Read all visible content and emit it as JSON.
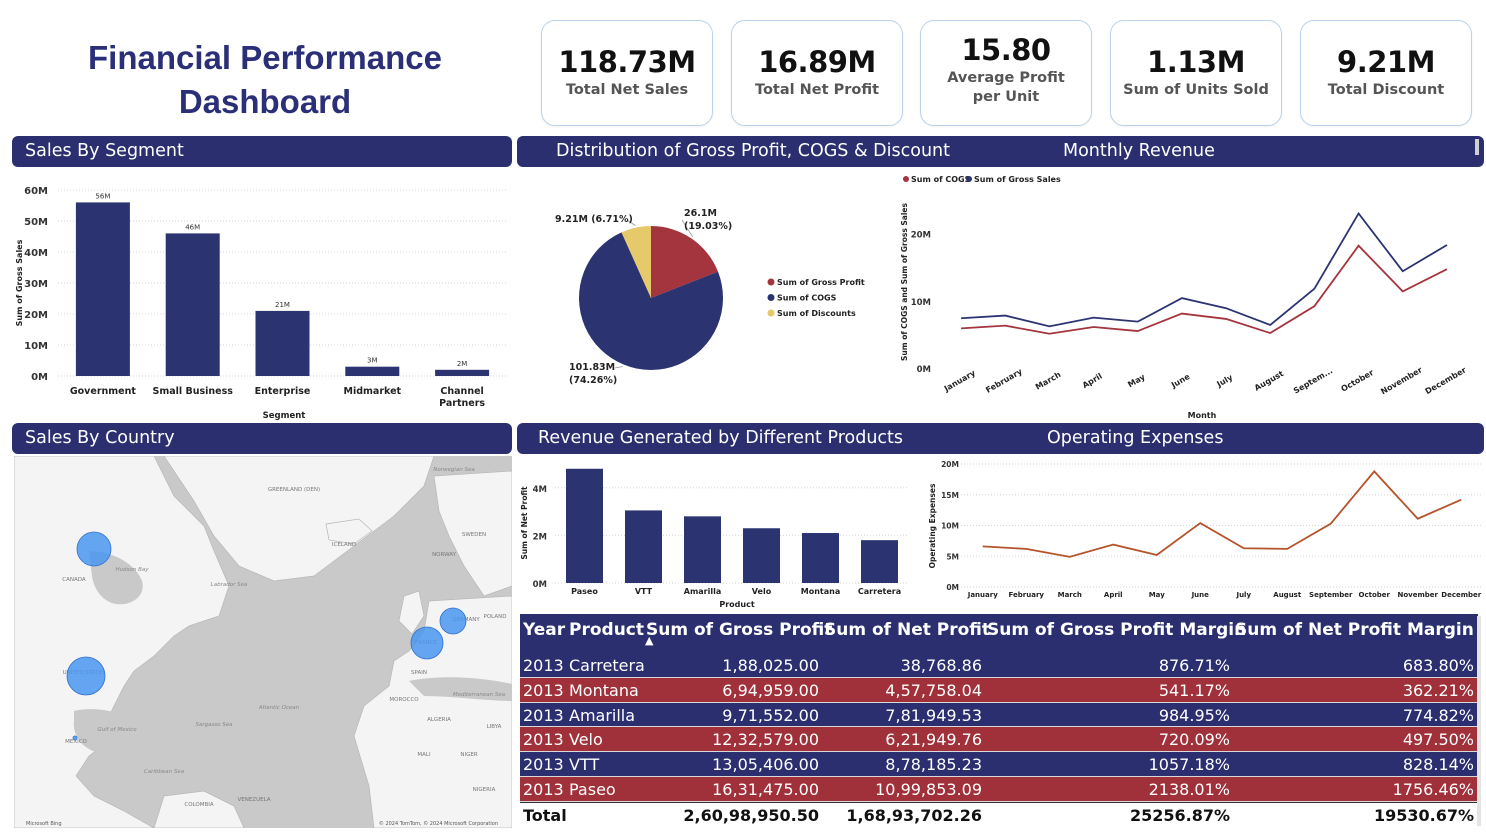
{
  "dashboard_title": "Financial Performance Dashboard",
  "kpis": [
    {
      "value": "118.73M",
      "label": "Total Net Sales"
    },
    {
      "value": "16.89M",
      "label": "Total Net Profit"
    },
    {
      "value": "15.80",
      "label": "Average Profit per Unit"
    },
    {
      "value": "1.13M",
      "label": "Sum of Units Sold"
    },
    {
      "value": "9.21M",
      "label": "Total Discount"
    }
  ],
  "sections": {
    "sales_by_segment": "Sales By Segment",
    "distribution": "Distribution of Gross Profit, COGS & Discount",
    "monthly_revenue": "Monthly Revenue",
    "sales_by_country": "Sales By Country",
    "revenue_products": "Revenue Generated by Different Products",
    "operating_expenses": "Operating Expenses"
  },
  "chart_data": [
    {
      "id": "segment",
      "type": "bar",
      "categories": [
        "Government",
        "Small Business",
        "Enterprise",
        "Midmarket",
        "Channel Partners"
      ],
      "values": [
        56,
        46,
        21,
        3,
        2
      ],
      "data_labels": [
        "56M",
        "46M",
        "21M",
        "3M",
        "2M"
      ],
      "xlabel": "Segment",
      "ylabel": "Sum of Gross Sales",
      "yticks": [
        "0M",
        "10M",
        "20M",
        "30M",
        "40M",
        "50M",
        "60M"
      ],
      "ylim": [
        0,
        60
      ],
      "grid": true,
      "color": "#2b3471"
    },
    {
      "id": "distribution",
      "type": "pie",
      "slices": [
        {
          "name": "Sum of Gross Profit",
          "value": 26.1,
          "percent": 19.03,
          "label1": "26.1M",
          "label2": "(19.03%)",
          "color": "#a4343d"
        },
        {
          "name": "Sum of COGS",
          "value": 101.83,
          "percent": 74.26,
          "label1": "101.83M",
          "label2": "(74.26%)",
          "color": "#2b3471"
        },
        {
          "name": "Sum of Discounts",
          "value": 9.21,
          "percent": 6.71,
          "label1": "9.21M (6.71%)",
          "label2": "",
          "color": "#e6c96b"
        }
      ],
      "legend": "right"
    },
    {
      "id": "monthly",
      "type": "line",
      "categories": [
        "January",
        "February",
        "March",
        "April",
        "May",
        "June",
        "July",
        "August",
        "Septem...",
        "October",
        "November",
        "December"
      ],
      "series": [
        {
          "name": "Sum of COGS",
          "color": "#a4343d",
          "values": [
            5.9,
            6.3,
            5.1,
            6.1,
            5.5,
            8.1,
            7.3,
            5.2,
            9.2,
            18.2,
            11.4,
            14.7
          ]
        },
        {
          "name": "Sum of Gross Sales",
          "color": "#2b3471",
          "values": [
            7.4,
            7.8,
            6.2,
            7.5,
            6.9,
            10.4,
            8.9,
            6.4,
            11.8,
            23.0,
            14.4,
            18.3
          ]
        }
      ],
      "xlabel": "Month",
      "ylabel": "Sum of COGS and Sum of Gross Sales",
      "yticks": [
        "0M",
        "10M",
        "20M"
      ],
      "ylim": [
        0,
        25
      ],
      "legend": "top-left"
    },
    {
      "id": "products",
      "type": "bar",
      "categories": [
        "Paseo",
        "VTT",
        "Amarilla",
        "Velo",
        "Montana",
        "Carretera"
      ],
      "values": [
        4.8,
        3.05,
        2.8,
        2.3,
        2.1,
        1.8
      ],
      "xlabel": "Product",
      "ylabel": "Sum of Net Profit",
      "yticks": [
        "0M",
        "2M",
        "4M"
      ],
      "ylim": [
        0,
        5
      ],
      "grid": true,
      "color": "#2b3471"
    },
    {
      "id": "opex",
      "type": "line",
      "categories": [
        "January",
        "February",
        "March",
        "April",
        "May",
        "June",
        "July",
        "August",
        "September",
        "October",
        "November",
        "December"
      ],
      "series": [
        {
          "name": "Operating Expenses",
          "color": "#b5532a",
          "values": [
            6.6,
            6.2,
            4.9,
            6.9,
            5.2,
            10.4,
            6.3,
            6.2,
            10.3,
            18.8,
            11.1,
            14.2
          ]
        }
      ],
      "ylabel": "Operating Expenses",
      "yticks": [
        "0M",
        "5M",
        "10M",
        "15M",
        "20M"
      ],
      "ylim": [
        0,
        20
      ],
      "grid": true
    }
  ],
  "map": {
    "labels": [
      "GREENLAND (DEN)",
      "Norwegian Sea",
      "ICELAND",
      "SWEDEN",
      "NORWAY",
      "CANADA",
      "Hudson Bay",
      "Labrador Sea",
      "UNITED STATES",
      "Atlantic Ocean",
      "Sargasso Sea",
      "Gulf of Mexico",
      "MEXICO",
      "Caribbean Sea",
      "COLOMBIA",
      "VENEZUELA",
      "SPAIN",
      "FRANCE",
      "GERMANY",
      "POLAND",
      "MOROCCO",
      "ALGERIA",
      "LIBYA",
      "Mediterranean Sea",
      "MALI",
      "NIGER",
      "NIGERIA"
    ],
    "attribution": "© 2024 TomTom, © 2024 Microsoft Corporation",
    "brand": "Microsoft Bing",
    "bubble_color": "#4a96f0"
  },
  "table": {
    "columns": [
      "Year",
      "Product",
      "Sum of Gross Profit",
      "Sum of Net Profit",
      "Sum of Gross Profit Margin",
      "Sum of Net Profit Margin"
    ],
    "sort_indicator": "▲",
    "rows": [
      [
        "2013",
        "Carretera",
        "1,88,025.00",
        "38,768.86",
        "876.71%",
        "683.80%"
      ],
      [
        "2013",
        "Montana",
        "6,94,959.00",
        "4,57,758.04",
        "541.17%",
        "362.21%"
      ],
      [
        "2013",
        "Amarilla",
        "9,71,552.00",
        "7,81,949.53",
        "984.95%",
        "774.82%"
      ],
      [
        "2013",
        "Velo",
        "12,32,579.00",
        "6,21,949.76",
        "720.09%",
        "497.50%"
      ],
      [
        "2013",
        "VTT",
        "13,05,406.00",
        "8,78,185.23",
        "1057.18%",
        "828.14%"
      ],
      [
        "2013",
        "Paseo",
        "16,31,475.00",
        "10,99,853.09",
        "2138.01%",
        "1756.46%"
      ]
    ],
    "total": [
      "Total",
      "2,60,98,950.50",
      "1,68,93,702.26",
      "25256.87%",
      "19530.67%"
    ]
  }
}
